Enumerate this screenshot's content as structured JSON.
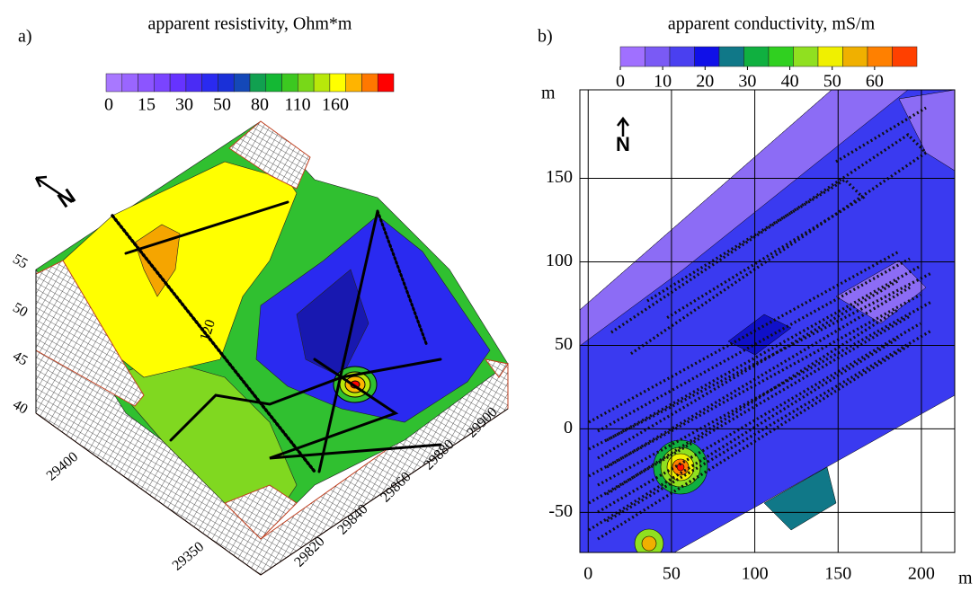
{
  "panel_a": {
    "label": "a)",
    "colorbar": {
      "title": "apparent resistivity, Ohm*m",
      "colors": [
        "#a878ff",
        "#9a66ff",
        "#8c55ff",
        "#7a44ff",
        "#6633ff",
        "#4a2cf5",
        "#2a2af0",
        "#1a30d8",
        "#1448b8",
        "#11a050",
        "#14b834",
        "#3cc820",
        "#78d818",
        "#b8e80a",
        "#ffff00",
        "#ffb400",
        "#ff7800",
        "#ff0000"
      ],
      "ticks": [
        0,
        15,
        30,
        50,
        80,
        110,
        160
      ]
    },
    "z_ticks": [
      55,
      50,
      45,
      40
    ],
    "y_ticks": [
      29400,
      29350
    ],
    "x_ticks": [
      29820,
      29840,
      29860,
      29880,
      29900
    ],
    "contour_label": "120",
    "north": "N"
  },
  "panel_b": {
    "label": "b)",
    "colorbar": {
      "title": "apparent conductivity, mS/m",
      "colors": [
        "#a070ff",
        "#7a5af5",
        "#4a40f0",
        "#1010e8",
        "#107888",
        "#10b040",
        "#30d020",
        "#90e020",
        "#f0f000",
        "#f0b000",
        "#ff8000",
        "#ff4000"
      ],
      "lim": [
        0,
        70
      ],
      "ticks": [
        0,
        10,
        20,
        30,
        40,
        50,
        60
      ]
    },
    "xlim": [
      -5,
      220
    ],
    "ylim": [
      -74,
      203
    ],
    "xticks": [
      0,
      50,
      100,
      150,
      200
    ],
    "yticks": [
      150,
      100,
      50,
      0,
      -50
    ],
    "x_label": "m",
    "y_label": "m",
    "north": "N"
  }
}
